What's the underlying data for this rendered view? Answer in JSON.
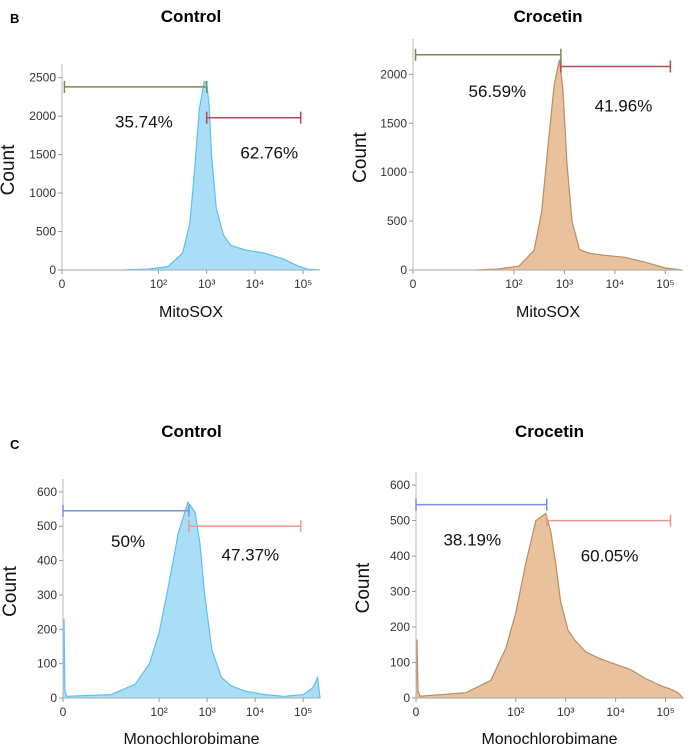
{
  "panels": [
    {
      "letter": "B"
    },
    {
      "letter": "C"
    }
  ],
  "chart_data": [
    {
      "type": "area",
      "title": "Control",
      "xlabel": "MitoSOX",
      "ylabel": "Count",
      "ylim": [
        0,
        2600
      ],
      "yticks": [
        0,
        500,
        1000,
        1500,
        2000,
        2500
      ],
      "xticks": [
        {
          "v": 0,
          "t": "0"
        },
        {
          "v": 2,
          "t": "10²"
        },
        {
          "v": 3,
          "t": "10³"
        },
        {
          "v": 4,
          "t": "10⁴"
        },
        {
          "v": 5,
          "t": "10⁵"
        }
      ],
      "xlim": [
        0,
        5.35
      ],
      "fill": "#a9def6",
      "stroke": "#5ec1ec",
      "curve": {
        "x": [
          0,
          1.2,
          1.8,
          2.2,
          2.5,
          2.65,
          2.75,
          2.85,
          2.95,
          3.0,
          3.05,
          3.1,
          3.2,
          3.35,
          3.5,
          3.8,
          4.2,
          4.6,
          4.9,
          5.1,
          5.35
        ],
        "y": [
          0,
          0,
          12,
          45,
          220,
          600,
          1300,
          2100,
          2450,
          2420,
          2150,
          1500,
          800,
          450,
          320,
          260,
          220,
          140,
          50,
          10,
          0
        ]
      },
      "gates": [
        {
          "label": "35.74%",
          "from": 0.05,
          "to": 3.0,
          "level": 2380,
          "color": "#7a8a55",
          "label_x": 1.1,
          "label_y": 1850
        },
        {
          "label": "62.76%",
          "from": 3.0,
          "to": 4.95,
          "level": 1980,
          "color": "#b04a55",
          "label_x": 3.7,
          "label_y": 1450
        }
      ]
    },
    {
      "type": "area",
      "title": "Crocetin",
      "xlabel": "MitoSOX",
      "ylabel": "Count",
      "ylim": [
        0,
        2300
      ],
      "yticks": [
        0,
        500,
        1000,
        1500,
        2000
      ],
      "xticks": [
        {
          "v": 0,
          "t": "0"
        },
        {
          "v": 2,
          "t": "10²"
        },
        {
          "v": 3,
          "t": "10³"
        },
        {
          "v": 4,
          "t": "10⁴"
        },
        {
          "v": 5,
          "t": "10⁵"
        }
      ],
      "xlim": [
        0,
        5.35
      ],
      "fill": "#e9c19d",
      "stroke": "#b98d66",
      "curve": {
        "x": [
          0,
          1.2,
          1.7,
          2.1,
          2.4,
          2.55,
          2.7,
          2.8,
          2.9,
          2.97,
          3.05,
          3.15,
          3.3,
          3.5,
          3.8,
          4.2,
          4.6,
          5.0,
          5.35
        ],
        "y": [
          0,
          0,
          10,
          40,
          200,
          600,
          1400,
          1900,
          2150,
          1850,
          1100,
          500,
          210,
          170,
          150,
          130,
          80,
          20,
          0
        ]
      },
      "gates": [
        {
          "label": "56.59%",
          "from": 0.05,
          "to": 2.93,
          "level": 2200,
          "color": "#7a8a55",
          "label_x": 1.1,
          "label_y": 1770
        },
        {
          "label": "41.96%",
          "from": 2.93,
          "to": 5.1,
          "level": 2080,
          "color": "#b04a55",
          "label_x": 3.6,
          "label_y": 1620
        }
      ]
    },
    {
      "type": "area",
      "title": "Control",
      "xlabel": "Monochlorobimane",
      "ylabel": "Count",
      "ylim": [
        0,
        620
      ],
      "yticks": [
        0,
        100,
        200,
        300,
        400,
        500,
        600
      ],
      "xticks": [
        {
          "v": 0,
          "t": "0"
        },
        {
          "v": 2,
          "t": "10²"
        },
        {
          "v": 3,
          "t": "10³"
        },
        {
          "v": 4,
          "t": "10⁴"
        },
        {
          "v": 5,
          "t": "10⁵"
        }
      ],
      "xlim": [
        0,
        5.35
      ],
      "fill": "#a9def6",
      "stroke": "#5ec1ec",
      "curve": {
        "x": [
          0,
          0.02,
          0.04,
          0.08,
          1.0,
          1.5,
          1.8,
          2.0,
          2.2,
          2.4,
          2.6,
          2.75,
          2.85,
          2.95,
          3.1,
          3.3,
          3.5,
          3.8,
          4.2,
          4.6,
          5.0,
          5.2,
          5.3,
          5.35
        ],
        "y": [
          0,
          230,
          20,
          5,
          10,
          40,
          100,
          190,
          330,
          480,
          570,
          540,
          450,
          300,
          140,
          60,
          35,
          20,
          10,
          5,
          10,
          30,
          60,
          0
        ]
      },
      "gates": [
        {
          "label": "50%",
          "from": 0.0,
          "to": 2.62,
          "level": 545,
          "color": "#7c8fe3",
          "label_x": 1.0,
          "label_y": 440
        },
        {
          "label": "47.37%",
          "from": 2.62,
          "to": 4.95,
          "level": 500,
          "color": "#e89a92",
          "label_x": 3.3,
          "label_y": 400
        }
      ]
    },
    {
      "type": "area",
      "title": "Crocetin",
      "xlabel": "Monochlorobimane",
      "ylabel": "Count",
      "ylim": [
        0,
        620
      ],
      "yticks": [
        0,
        100,
        200,
        300,
        400,
        500,
        600
      ],
      "xticks": [
        {
          "v": 0,
          "t": "0"
        },
        {
          "v": 2,
          "t": "10²"
        },
        {
          "v": 3,
          "t": "10³"
        },
        {
          "v": 4,
          "t": "10⁴"
        },
        {
          "v": 5,
          "t": "10⁵"
        }
      ],
      "xlim": [
        0,
        5.35
      ],
      "fill": "#e9c19d",
      "stroke": "#b98d66",
      "curve": {
        "x": [
          0,
          0.02,
          0.04,
          0.08,
          1.0,
          1.5,
          1.8,
          2.0,
          2.2,
          2.4,
          2.6,
          2.7,
          2.8,
          2.9,
          3.05,
          3.2,
          3.4,
          3.7,
          4.0,
          4.3,
          4.6,
          4.9,
          5.1,
          5.25,
          5.35
        ],
        "y": [
          0,
          165,
          20,
          5,
          15,
          50,
          140,
          240,
          380,
          500,
          520,
          470,
          380,
          270,
          190,
          160,
          130,
          110,
          95,
          80,
          55,
          35,
          25,
          15,
          0
        ]
      },
      "gates": [
        {
          "label": "38.19%",
          "from": 0.0,
          "to": 2.62,
          "level": 545,
          "color": "#7c8fe3",
          "label_x": 0.55,
          "label_y": 430
        },
        {
          "label": "60.05%",
          "from": 2.62,
          "to": 5.1,
          "level": 500,
          "color": "#e89a92",
          "label_x": 3.3,
          "label_y": 385
        }
      ]
    }
  ]
}
